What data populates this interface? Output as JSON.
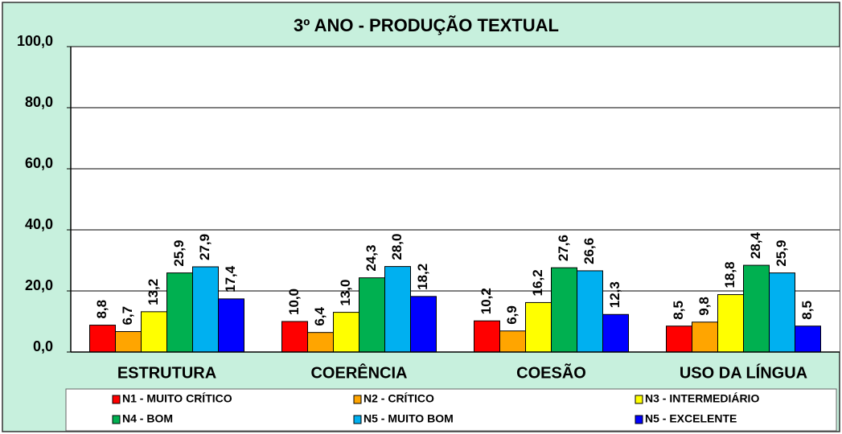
{
  "chart_data": {
    "type": "bar",
    "title": "3º ANO - PRODUÇÃO TEXTUAL",
    "categories": [
      "ESTRUTURA",
      "COERÊNCIA",
      "COESÃO",
      "USO DA LÍNGUA"
    ],
    "series": [
      {
        "name": "N1 - MUITO CRÍTICO",
        "color": "#ff0000",
        "values": [
          8.8,
          10.0,
          10.2,
          8.5
        ],
        "value_labels": [
          "8,8",
          "10,0",
          "10,2",
          "8,5"
        ]
      },
      {
        "name": "N2 - CRÍTICO",
        "color": "#ffa500",
        "values": [
          6.7,
          6.4,
          6.9,
          9.8
        ],
        "value_labels": [
          "6,7",
          "6,4",
          "6,9",
          "9,8"
        ]
      },
      {
        "name": "N3 - INTERMEDIÁRIO",
        "color": "#ffff00",
        "values": [
          13.2,
          13.0,
          16.2,
          18.8
        ],
        "value_labels": [
          "13,2",
          "13,0",
          "16,2",
          "18,8"
        ]
      },
      {
        "name": "N4 - BOM",
        "color": "#00b050",
        "values": [
          25.9,
          24.3,
          27.6,
          28.4
        ],
        "value_labels": [
          "25,9",
          "24,3",
          "27,6",
          "28,4"
        ]
      },
      {
        "name": "N5 - MUITO BOM",
        "color": "#00b0f0",
        "values": [
          27.9,
          28.0,
          26.6,
          25.9
        ],
        "value_labels": [
          "27,9",
          "28,0",
          "26,6",
          "25,9"
        ]
      },
      {
        "name": "N5 - EXCELENTE",
        "color": "#0000ff",
        "values": [
          17.4,
          18.2,
          12.3,
          8.5
        ],
        "value_labels": [
          "17,4",
          "18,2",
          "12,3",
          "8,5"
        ]
      }
    ],
    "ylim": [
      0,
      100
    ],
    "yticks": [
      {
        "value": 0,
        "label": "0,0"
      },
      {
        "value": 20,
        "label": "20,0"
      },
      {
        "value": 40,
        "label": "40,0"
      },
      {
        "value": 60,
        "label": "60,0"
      },
      {
        "value": 80,
        "label": "80,0"
      },
      {
        "value": 100,
        "label": "100,0"
      }
    ],
    "grid": true
  }
}
